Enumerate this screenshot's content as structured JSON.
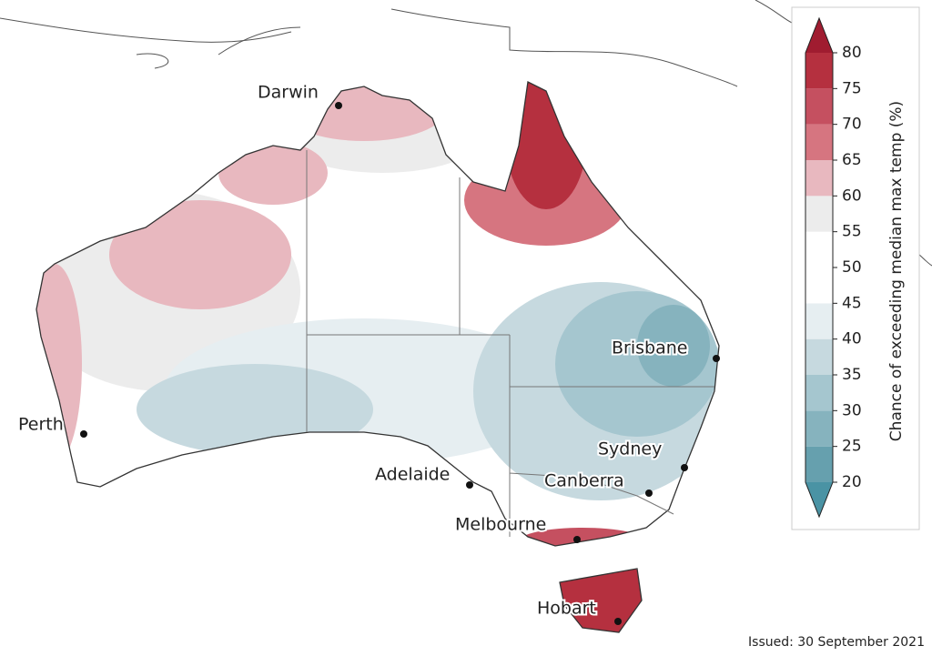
{
  "map": {
    "cities": [
      {
        "name": "Darwin"
      },
      {
        "name": "Perth"
      },
      {
        "name": "Adelaide"
      },
      {
        "name": "Melbourne"
      },
      {
        "name": "Canberra"
      },
      {
        "name": "Sydney"
      },
      {
        "name": "Brisbane"
      },
      {
        "name": "Hobart"
      }
    ]
  },
  "legend": {
    "title": "Chance of exceeding median max temp (%)",
    "ticks": [
      20,
      25,
      30,
      35,
      40,
      45,
      50,
      55,
      60,
      65,
      70,
      75,
      80
    ],
    "colors": [
      "#66a0ae",
      "#86b3be",
      "#a5c6cf",
      "#c6d9df",
      "#e6eef1",
      "#ffffff",
      "#ffffff",
      "#ececec",
      "#e8b8bf",
      "#d67580",
      "#c55060",
      "#b5303f"
    ],
    "under_color": "#4a93a4",
    "over_color": "#a01c30"
  },
  "issued": "Issued: 30 September 2021"
}
